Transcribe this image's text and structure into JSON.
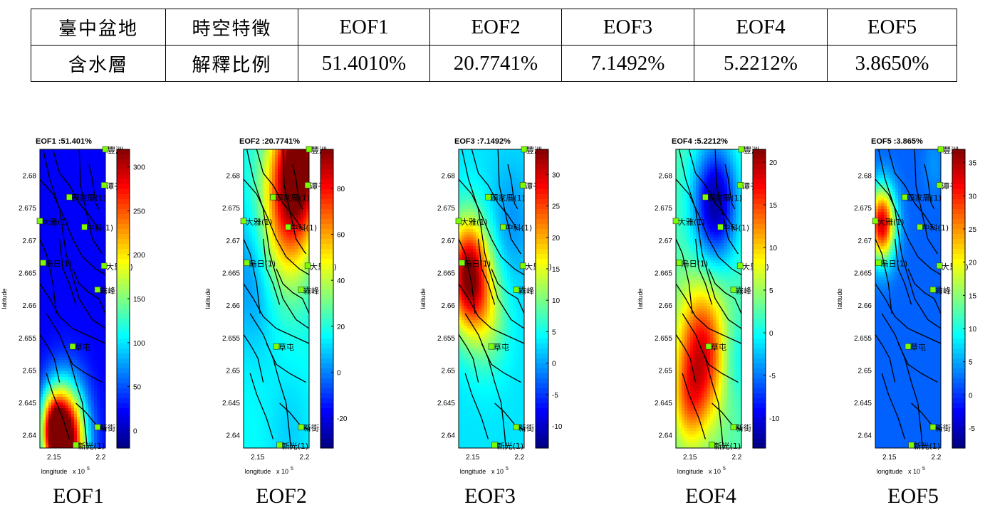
{
  "table": {
    "region_lines": [
      "臺中盆地",
      "含水層"
    ],
    "feature_label": "時空特徵",
    "ratio_label": "解釋比例",
    "headers": [
      "EOF1",
      "EOF2",
      "EOF3",
      "EOF4",
      "EOF5"
    ],
    "ratios": [
      "51.4010%",
      "20.7741%",
      "7.1492%",
      "5.2212%",
      "3.8650%"
    ]
  },
  "axes": {
    "ylabel": "latitude",
    "xlabel": "longitude",
    "x_exponent": "x 10",
    "x_exponent_power": "5",
    "y_ticks": [
      "2.68",
      "2.675",
      "2.67",
      "2.665",
      "2.66",
      "2.655",
      "2.65",
      "2.645",
      "2.64"
    ],
    "x_ticks": [
      "2.15",
      "2.2"
    ]
  },
  "stations": [
    "豐洲",
    "潭子",
    "頭家厝(1)",
    "大雅(1)",
    "中科(1)",
    "烏日(1)",
    "大里(1)",
    "霧峰",
    "草屯",
    "新街",
    "新光(1)"
  ],
  "colors": {
    "jet": [
      "#00008f",
      "#0000ff",
      "#0080ff",
      "#00ffff",
      "#80ff80",
      "#ffff00",
      "#ff8000",
      "#ff0000",
      "#800000"
    ],
    "river": "#000000",
    "station_marker": "#7cfc00"
  },
  "chart_data": [
    {
      "type": "heatmap",
      "title": "EOF1 :51.401%",
      "caption": "EOF1",
      "colorbar_ticks": [
        0,
        50,
        100,
        150,
        200,
        250,
        300
      ],
      "clim": [
        -20,
        320
      ],
      "xlim": [
        2.135,
        2.205
      ],
      "ylim": [
        2.638,
        2.684
      ]
    },
    {
      "type": "heatmap",
      "title": "EOF2 :20.7741%",
      "caption": "EOF2",
      "colorbar_ticks": [
        -20,
        0,
        20,
        40,
        60,
        80
      ],
      "clim": [
        -33,
        97
      ],
      "xlim": [
        2.135,
        2.205
      ],
      "ylim": [
        2.638,
        2.684
      ]
    },
    {
      "type": "heatmap",
      "title": "EOF3 :7.1492%",
      "caption": "EOF3",
      "colorbar_ticks": [
        -10,
        -5,
        0,
        5,
        10,
        15,
        20,
        25,
        30
      ],
      "clim": [
        -13.5,
        34
      ],
      "xlim": [
        2.135,
        2.205
      ],
      "ylim": [
        2.638,
        2.684
      ]
    },
    {
      "type": "heatmap",
      "title": "EOF4 :5.2212%",
      "caption": "EOF4",
      "colorbar_ticks": [
        -10,
        -5,
        0,
        5,
        10,
        15,
        20
      ],
      "clim": [
        -13.5,
        21.5
      ],
      "xlim": [
        2.135,
        2.205
      ],
      "ylim": [
        2.638,
        2.684
      ]
    },
    {
      "type": "heatmap",
      "title": "EOF5 :3.865%",
      "caption": "EOF5",
      "colorbar_ticks": [
        -5,
        0,
        5,
        10,
        15,
        20,
        25,
        30,
        35
      ],
      "clim": [
        -8,
        37
      ],
      "xlim": [
        2.135,
        2.205
      ],
      "ylim": [
        2.638,
        2.684
      ]
    }
  ]
}
